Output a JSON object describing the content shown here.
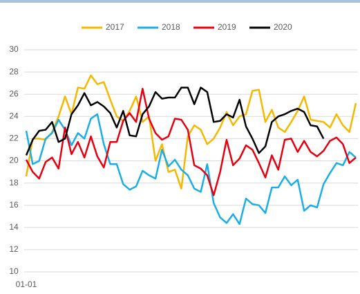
{
  "chart_data": {
    "type": "line",
    "categories": [
      "01-01",
      null,
      null,
      null,
      null,
      null,
      null,
      null,
      null,
      null,
      null,
      null,
      null,
      null,
      null,
      null,
      null,
      null,
      null,
      null,
      null,
      null,
      null,
      null,
      null,
      null,
      null,
      null,
      null,
      null,
      null,
      null,
      null,
      null,
      null,
      null,
      null,
      null,
      null,
      null,
      null,
      null,
      null,
      null,
      null,
      null,
      null,
      null,
      null,
      null,
      null,
      null
    ],
    "series": [
      {
        "name": "2017",
        "color": "#f5b800",
        "values": [
          18.6,
          22.0,
          22.0,
          21.9,
          22.6,
          24.0,
          25.8,
          24.2,
          26.6,
          26.5,
          27.7,
          26.9,
          27.1,
          25.5,
          24.0,
          23.6,
          24.5,
          25.8,
          23.5,
          24.0,
          20.0,
          21.5,
          19.0,
          19.2,
          17.5,
          22.2,
          23.2,
          22.8,
          21.5,
          22.0,
          23.0,
          24.4,
          23.2,
          24.0,
          24.2,
          26.3,
          26.4,
          23.5,
          24.6,
          23.0,
          22.6,
          23.5,
          24.5,
          25.8,
          23.7,
          23.6,
          23.5,
          23.0,
          24.2,
          23.2,
          22.6,
          25.2
        ]
      },
      {
        "name": "2018",
        "color": "#1aaee6",
        "values": [
          22.7,
          19.7,
          20.0,
          22.0,
          22.5,
          23.7,
          22.8,
          21.4,
          22.5,
          22.0,
          23.8,
          24.2,
          21.5,
          19.7,
          19.7,
          17.9,
          17.4,
          17.7,
          19.1,
          18.7,
          18.4,
          21.0,
          19.5,
          20.1,
          19.2,
          18.7,
          17.5,
          17.2,
          19.7,
          16.2,
          14.9,
          14.4,
          15.2,
          14.3,
          16.6,
          16.1,
          16.0,
          15.3,
          17.6,
          17.6,
          18.6,
          17.8,
          18.3,
          15.5,
          16.0,
          15.8,
          17.9,
          18.9,
          19.8,
          19.6,
          20.8,
          20.3
        ]
      },
      {
        "name": "2019",
        "color": "#e6000f",
        "values": [
          20.1,
          19.0,
          18.4,
          19.9,
          20.3,
          19.3,
          23.0,
          20.6,
          21.7,
          20.3,
          22.2,
          20.4,
          19.4,
          21.7,
          21.7,
          23.6,
          24.3,
          23.5,
          26.5,
          23.8,
          22.5,
          21.9,
          22.2,
          23.8,
          23.7,
          22.8,
          19.6,
          19.3,
          18.7,
          16.9,
          19.0,
          21.9,
          19.6,
          20.2,
          21.4,
          21.0,
          19.8,
          18.5,
          20.5,
          19.2,
          21.9,
          22.0,
          20.8,
          21.8,
          20.8,
          20.4,
          20.9,
          21.8,
          22.1,
          21.5,
          19.8,
          20.3
        ]
      },
      {
        "name": "2020",
        "color": "#000000",
        "values": [
          20.5,
          21.9,
          22.7,
          22.8,
          23.5,
          21.7,
          22.0,
          24.2,
          25.0,
          26.1,
          25.0,
          25.3,
          24.9,
          24.3,
          23.0,
          24.5,
          22.3,
          22.2,
          24.2,
          24.9,
          26.2,
          25.6,
          25.7,
          25.7,
          26.6,
          26.6,
          25.1,
          26.6,
          26.2,
          23.5,
          23.6,
          24.2,
          23.9,
          25.5,
          23.1,
          22.0,
          20.7,
          21.3,
          23.5,
          24.0,
          24.2,
          24.5,
          24.7,
          24.4,
          23.2,
          23.1,
          22.0,
          null,
          null,
          null,
          null,
          null
        ]
      }
    ],
    "ylim": [
      10,
      30
    ],
    "yticks": [
      10,
      12,
      14,
      16,
      18,
      20,
      22,
      24,
      26,
      28,
      30
    ],
    "grid": true,
    "legend": "top"
  }
}
